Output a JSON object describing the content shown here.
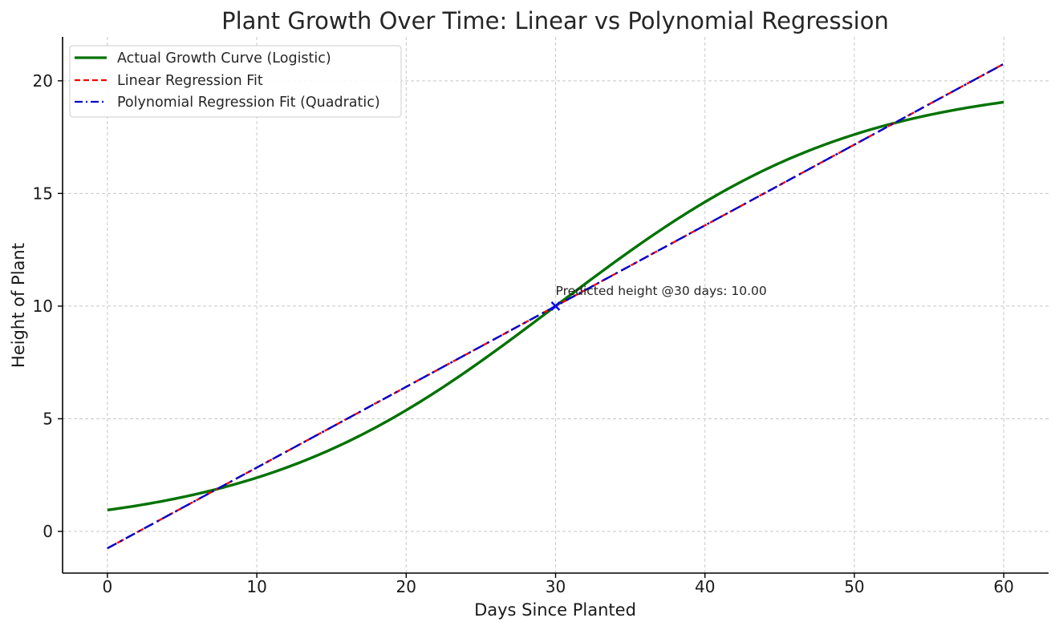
{
  "chart_data": {
    "type": "line",
    "title": "Plant Growth Over Time: Linear vs Polynomial Regression",
    "xlabel": "Days Since Planted",
    "ylabel": "Height of Plant",
    "xlim": [
      -3,
      63
    ],
    "ylim": [
      -1.85,
      21.95
    ],
    "xticks": [
      0,
      10,
      20,
      30,
      40,
      50,
      60
    ],
    "yticks": [
      0,
      5,
      10,
      15,
      20
    ],
    "grid": true,
    "legend_position": "top-left",
    "series": [
      {
        "name": "Actual Growth Curve (Logistic)",
        "kind": "logistic",
        "style": "solid",
        "color": "#007200",
        "params": {
          "L": 20,
          "k": 0.1,
          "x0": 30
        },
        "x_range": [
          0,
          60
        ]
      },
      {
        "name": "Linear Regression Fit",
        "kind": "linear",
        "style": "dashed",
        "color": "#ff0000",
        "points": [
          [
            0,
            -0.75
          ],
          [
            60,
            20.75
          ]
        ]
      },
      {
        "name": "Polynomial Regression Fit (Quadratic)",
        "kind": "linear",
        "style": "dashdot",
        "color": "#0000cc",
        "points": [
          [
            0,
            -0.75
          ],
          [
            60,
            20.75
          ]
        ]
      }
    ],
    "annotation": {
      "text": "Predicted height @30 days: 10.00",
      "x": 30,
      "y": 10.0,
      "marker": "x",
      "color": "#0000ff"
    }
  }
}
